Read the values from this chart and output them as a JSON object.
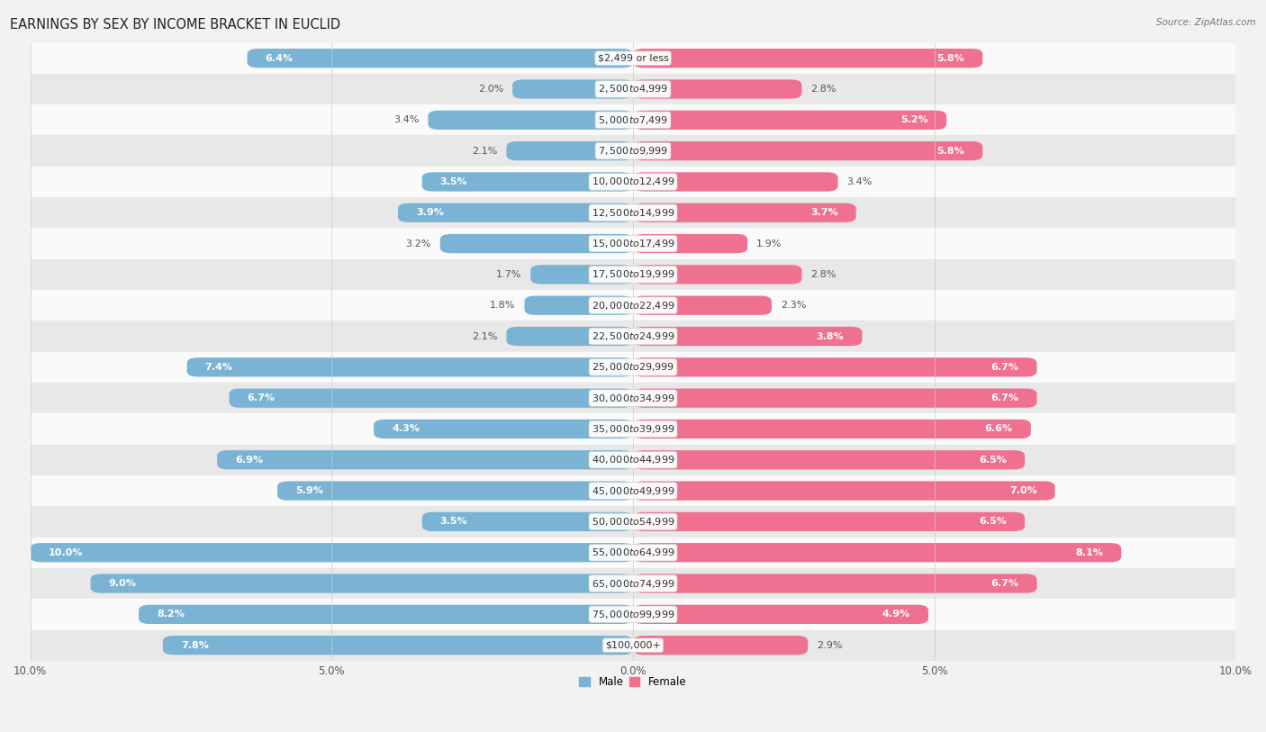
{
  "title": "EARNINGS BY SEX BY INCOME BRACKET IN EUCLID",
  "source": "Source: ZipAtlas.com",
  "categories": [
    "$2,499 or less",
    "$2,500 to $4,999",
    "$5,000 to $7,499",
    "$7,500 to $9,999",
    "$10,000 to $12,499",
    "$12,500 to $14,999",
    "$15,000 to $17,499",
    "$17,500 to $19,999",
    "$20,000 to $22,499",
    "$22,500 to $24,999",
    "$25,000 to $29,999",
    "$30,000 to $34,999",
    "$35,000 to $39,999",
    "$40,000 to $44,999",
    "$45,000 to $49,999",
    "$50,000 to $54,999",
    "$55,000 to $64,999",
    "$65,000 to $74,999",
    "$75,000 to $99,999",
    "$100,000+"
  ],
  "male_values": [
    6.4,
    2.0,
    3.4,
    2.1,
    3.5,
    3.9,
    3.2,
    1.7,
    1.8,
    2.1,
    7.4,
    6.7,
    4.3,
    6.9,
    5.9,
    3.5,
    10.0,
    9.0,
    8.2,
    7.8
  ],
  "female_values": [
    5.8,
    2.8,
    5.2,
    5.8,
    3.4,
    3.7,
    1.9,
    2.8,
    2.3,
    3.8,
    6.7,
    6.7,
    6.6,
    6.5,
    7.0,
    6.5,
    8.1,
    6.7,
    4.9,
    2.9
  ],
  "male_color": "#7ab3d4",
  "female_color": "#f07090",
  "male_label": "Male",
  "female_label": "Female",
  "axis_max": 10.0,
  "bg_color": "#f2f2f2",
  "row_light_color": "#fafafa",
  "row_dark_color": "#e8e8e8",
  "title_fontsize": 10.5,
  "label_fontsize": 8.0,
  "tick_fontsize": 8.5,
  "source_fontsize": 7.5,
  "cat_fontsize": 8.0
}
